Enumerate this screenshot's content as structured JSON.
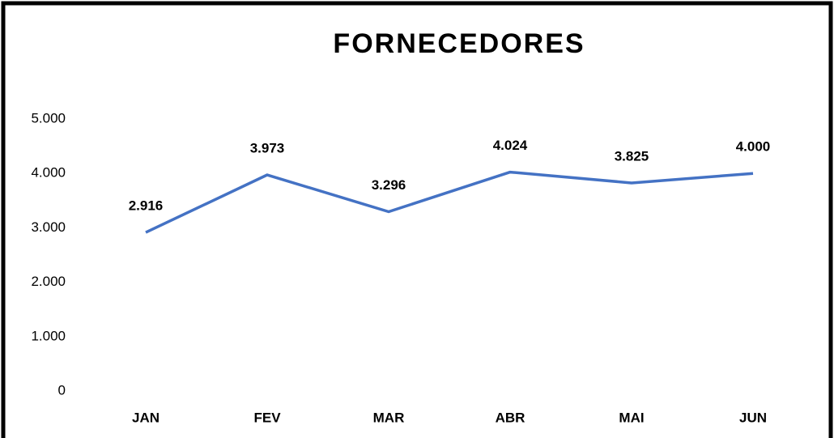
{
  "chart_data": {
    "type": "line",
    "title": "FORNECEDORES",
    "categories": [
      "JAN",
      "FEV",
      "MAR",
      "ABR",
      "MAI",
      "JUN"
    ],
    "series": [
      {
        "name": "FORNECEDORES",
        "color": "#4472c4",
        "values": [
          2916,
          3973,
          3296,
          4024,
          3825,
          4000
        ],
        "value_labels": [
          "2.916",
          "3.973",
          "3.296",
          "4.024",
          "3.825",
          "4.000"
        ]
      }
    ],
    "ylim": [
      0,
      5000
    ],
    "yticks": [
      0,
      {
        "value": 1000,
        "label": "1.000"
      },
      {
        "value": 2000,
        "label": "2.000"
      },
      {
        "value": 3000,
        "label": "3.000"
      },
      {
        "value": 4000,
        "label": "4.000"
      },
      {
        "value": 5000,
        "label": "5.000"
      }
    ],
    "grid": false
  }
}
